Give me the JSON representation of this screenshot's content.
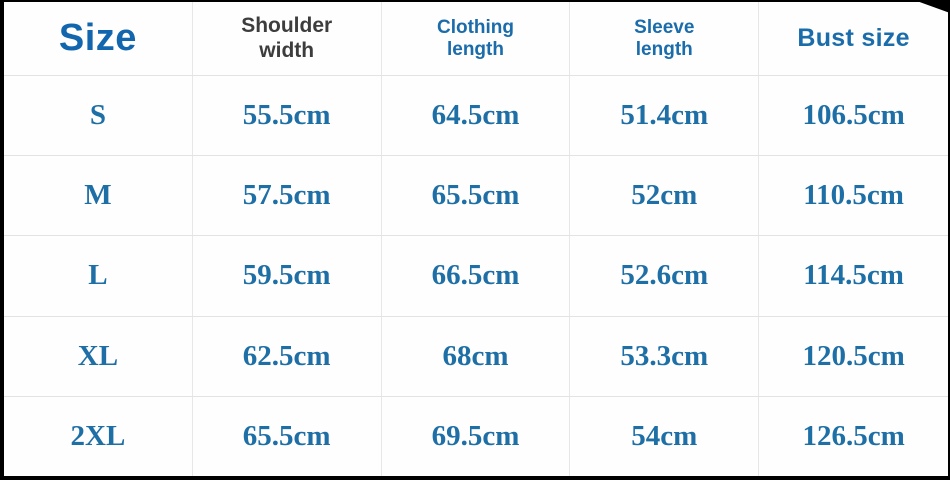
{
  "chart_data": {
    "type": "table",
    "columns": [
      "Size",
      "Shoulder width",
      "Clothing length",
      "Sleeve length",
      "Bust size"
    ],
    "rows": [
      [
        "S",
        "55.5cm",
        "64.5cm",
        "51.4cm",
        "106.5cm"
      ],
      [
        "M",
        "57.5cm",
        "65.5cm",
        "52cm",
        "110.5cm"
      ],
      [
        "L",
        "59.5cm",
        "66.5cm",
        "52.6cm",
        "114.5cm"
      ],
      [
        "XL",
        "62.5cm",
        "68cm",
        "53.3cm",
        "120.5cm"
      ],
      [
        "2XL",
        "65.5cm",
        "69.5cm",
        "54cm",
        "126.5cm"
      ]
    ]
  },
  "table": {
    "headers": [
      {
        "label": "Size"
      },
      {
        "line1": "Shoulder",
        "line2": "width"
      },
      {
        "line1": "Clothing",
        "line2": "length"
      },
      {
        "line1": "Sleeve",
        "line2": "length"
      },
      {
        "label": "Bust size"
      }
    ]
  },
  "colors": {
    "header_blue": "#1a6cab",
    "size_blue": "#1266ae",
    "header_gray": "#3d3d3d",
    "data_blue": "#1e6fa6",
    "grid_line": "#e3e3e3",
    "background": "#fefefe",
    "photo_border": "#000000"
  }
}
